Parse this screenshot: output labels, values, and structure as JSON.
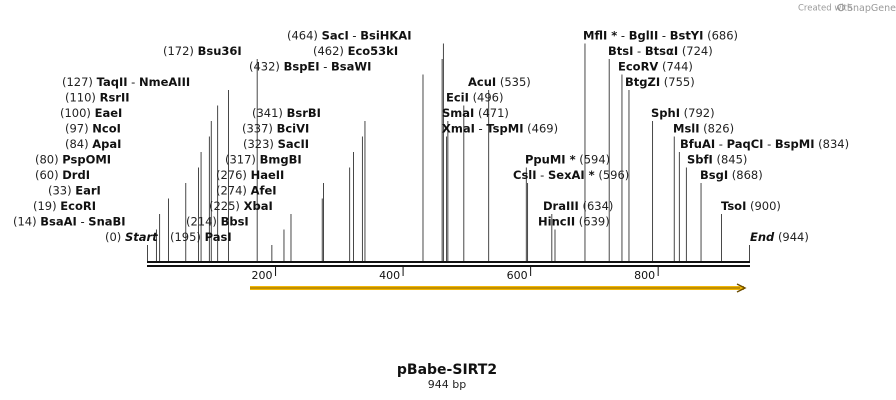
{
  "credit": {
    "prefix": "Created with",
    "brand": "SnapGene"
  },
  "map": {
    "name": "pBabe-SIRT2",
    "length_label": "944 bp",
    "length": 944
  },
  "axis": {
    "ticks": [
      200,
      400,
      600,
      800
    ]
  },
  "feature": {
    "from": 160,
    "to": 944,
    "color": "#f2b705",
    "direction": "forward"
  },
  "sites": [
    {
      "pos": 0,
      "num": "(0)",
      "parts": [
        "Start"
      ],
      "italic": true
    },
    {
      "pos": 944,
      "num": "(944)",
      "parts": [
        "End"
      ],
      "italic": true,
      "num_after": true
    },
    {
      "pos": 14,
      "num": "(14)",
      "parts": [
        "BsaAI",
        "SnaBI"
      ]
    },
    {
      "pos": 19,
      "num": "(19)",
      "parts": [
        "EcoRI"
      ]
    },
    {
      "pos": 33,
      "num": "(33)",
      "parts": [
        "EarI"
      ]
    },
    {
      "pos": 60,
      "num": "(60)",
      "parts": [
        "DrdI"
      ]
    },
    {
      "pos": 80,
      "num": "(80)",
      "parts": [
        "PspOMI"
      ]
    },
    {
      "pos": 84,
      "num": "(84)",
      "parts": [
        "ApaI"
      ]
    },
    {
      "pos": 97,
      "num": "(97)",
      "parts": [
        "NcoI"
      ]
    },
    {
      "pos": 100,
      "num": "(100)",
      "parts": [
        "EaeI"
      ]
    },
    {
      "pos": 110,
      "num": "(110)",
      "parts": [
        "RsrII"
      ]
    },
    {
      "pos": 127,
      "num": "(127)",
      "parts": [
        "TaqII",
        "NmeAIII"
      ]
    },
    {
      "pos": 172,
      "num": "(172)",
      "parts": [
        "Bsu36I"
      ]
    },
    {
      "pos": 195,
      "num": "(195)",
      "parts": [
        "PasI"
      ]
    },
    {
      "pos": 214,
      "num": "(214)",
      "parts": [
        "BbsI"
      ]
    },
    {
      "pos": 225,
      "num": "(225)",
      "parts": [
        "XbaI"
      ]
    },
    {
      "pos": 274,
      "num": "(274)",
      "parts": [
        "AfeI"
      ]
    },
    {
      "pos": 276,
      "num": "(276)",
      "parts": [
        "HaeII"
      ]
    },
    {
      "pos": 317,
      "num": "(317)",
      "parts": [
        "BmgBI"
      ]
    },
    {
      "pos": 323,
      "num": "(323)",
      "parts": [
        "SacII"
      ]
    },
    {
      "pos": 337,
      "num": "(337)",
      "parts": [
        "BciVI"
      ]
    },
    {
      "pos": 341,
      "num": "(341)",
      "parts": [
        "BsrBI"
      ]
    },
    {
      "pos": 432,
      "num": "(432)",
      "parts": [
        "BspEI",
        "BsaWI"
      ]
    },
    {
      "pos": 462,
      "num": "(462)",
      "parts": [
        "Eco53kI"
      ]
    },
    {
      "pos": 464,
      "num": "(464)",
      "parts": [
        "SacI",
        "BsiHKAI"
      ]
    },
    {
      "pos": 469,
      "num": "(469)",
      "parts": [
        "XmaI",
        "TspMI"
      ],
      "num_after": true
    },
    {
      "pos": 471,
      "num": "(471)",
      "parts": [
        "SmaI"
      ],
      "num_after": true
    },
    {
      "pos": 496,
      "num": "(496)",
      "parts": [
        "EciI"
      ],
      "num_after": true
    },
    {
      "pos": 535,
      "num": "(535)",
      "parts": [
        "AcuI"
      ],
      "num_after": true
    },
    {
      "pos": 594,
      "num": "(594)",
      "parts": [
        "PpuMI *"
      ],
      "num_after": true
    },
    {
      "pos": 596,
      "num": "(596)",
      "parts": [
        "CslI",
        "SexAI *"
      ],
      "num_after": true
    },
    {
      "pos": 634,
      "num": "(634)",
      "parts": [
        "DraIII"
      ],
      "num_after": true
    },
    {
      "pos": 639,
      "num": "(639)",
      "parts": [
        "HincII"
      ],
      "num_after": true
    },
    {
      "pos": 686,
      "num": "(686)",
      "parts": [
        "MflI *",
        "BglII",
        "BstYI"
      ],
      "num_after": true
    },
    {
      "pos": 724,
      "num": "(724)",
      "parts": [
        "BtsI",
        "BtsαI"
      ],
      "num_after": true
    },
    {
      "pos": 744,
      "num": "(744)",
      "parts": [
        "EcoRV"
      ],
      "num_after": true
    },
    {
      "pos": 755,
      "num": "(755)",
      "parts": [
        "BtgZI"
      ],
      "num_after": true
    },
    {
      "pos": 792,
      "num": "(792)",
      "parts": [
        "SphI"
      ],
      "num_after": true
    },
    {
      "pos": 826,
      "num": "(826)",
      "parts": [
        "MslI"
      ],
      "num_after": true
    },
    {
      "pos": 834,
      "num": "(834)",
      "parts": [
        "BfuAI",
        "PaqCI",
        "BspMI"
      ],
      "num_after": true
    },
    {
      "pos": 845,
      "num": "(845)",
      "parts": [
        "SbfI"
      ],
      "num_after": true
    },
    {
      "pos": 868,
      "num": "(868)",
      "parts": [
        "BsgI"
      ],
      "num_after": true
    },
    {
      "pos": 900,
      "num": "(900)",
      "parts": [
        "TsoI"
      ],
      "num_after": true
    }
  ]
}
